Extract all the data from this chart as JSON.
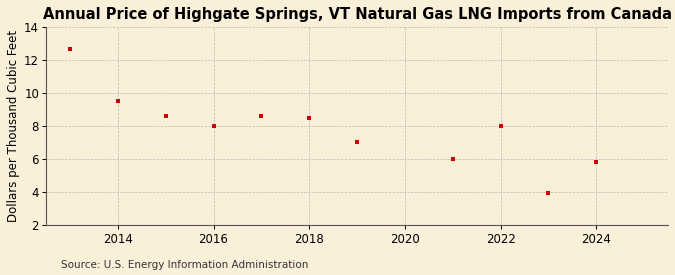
{
  "title": "Annual Price of Highgate Springs, VT Natural Gas LNG Imports from Canada",
  "ylabel": "Dollars per Thousand Cubic Feet",
  "source": "Source: U.S. Energy Information Administration",
  "background_color": "#faefd8",
  "marker_color": "#cc0000",
  "years": [
    2013,
    2014,
    2015,
    2016,
    2017,
    2018,
    2019,
    2021,
    2022,
    2023,
    2024
  ],
  "values": [
    12.7,
    9.5,
    8.6,
    8.0,
    8.6,
    8.5,
    7.0,
    6.0,
    8.0,
    3.9,
    5.8
  ],
  "xlim": [
    2012.5,
    2025.5
  ],
  "ylim": [
    2,
    14
  ],
  "yticks": [
    2,
    4,
    6,
    8,
    10,
    12,
    14
  ],
  "xticks": [
    2014,
    2016,
    2018,
    2020,
    2022,
    2024
  ],
  "title_fontsize": 10.5,
  "ylabel_fontsize": 8.5,
  "source_fontsize": 7.5,
  "tick_fontsize": 8.5
}
